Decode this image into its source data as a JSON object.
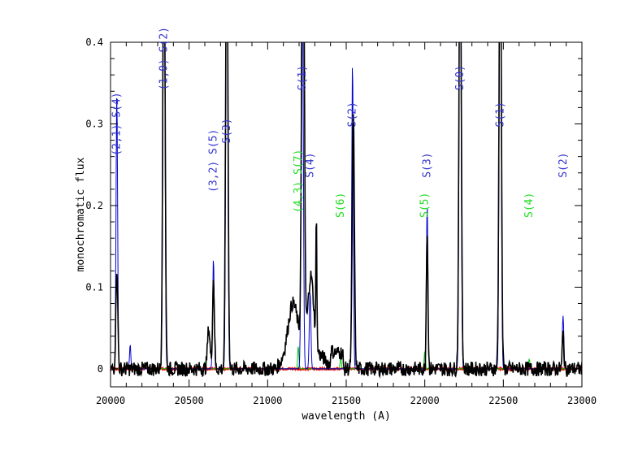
{
  "chart_data": {
    "type": "line",
    "xlabel": "wavelength (A)",
    "ylabel": "monochromatic flux",
    "xlim": [
      20000,
      23000
    ],
    "ylim": [
      -0.022,
      0.4
    ],
    "x_ticks": [
      20000,
      20500,
      21000,
      21500,
      22000,
      22500,
      23000
    ],
    "y_ticks": [
      0,
      0.1,
      0.2,
      0.3,
      0.4
    ],
    "y_tick_labels": [
      "0",
      "0.1",
      "0.2",
      "0.3",
      "0.4"
    ],
    "colors": {
      "observed": "#000000",
      "model_blue": "#0000cc",
      "model_green": "#00cc00",
      "model_red": "#ee0000",
      "label_blue": "#3333cc",
      "label_green": "#22dd22",
      "axis": "#000000"
    },
    "lines": [
      {
        "label": "(2,1) S(4)",
        "color": "blue",
        "x": 20040,
        "y": 0.261
      },
      {
        "label": "(1,0) S(2)",
        "color": "blue",
        "x": 20340,
        "y": 0.341
      },
      {
        "label": "(3,2) S(5)",
        "color": "blue",
        "x": 20655,
        "y": 0.216
      },
      {
        "label": "S(3)",
        "color": "blue",
        "x": 20740,
        "y": 0.276
      },
      {
        "label": "(4,3) S(7)",
        "color": "green",
        "x": 21195,
        "y": 0.191
      },
      {
        "label": "S(1)",
        "color": "blue",
        "x": 21220,
        "y": 0.341
      },
      {
        "label": "S(4)",
        "color": "blue",
        "x": 21270,
        "y": 0.234
      },
      {
        "label": "S(6)",
        "color": "green",
        "x": 21465,
        "y": 0.185
      },
      {
        "label": "S(2)",
        "color": "blue",
        "x": 21540,
        "y": 0.296
      },
      {
        "label": "S(5)",
        "color": "green",
        "x": 22000,
        "y": 0.185
      },
      {
        "label": "S(3)",
        "color": "blue",
        "x": 22015,
        "y": 0.234
      },
      {
        "label": "S(0)",
        "color": "blue",
        "x": 22225,
        "y": 0.341
      },
      {
        "label": "S(1)",
        "color": "blue",
        "x": 22480,
        "y": 0.296
      },
      {
        "label": "S(4)",
        "color": "green",
        "x": 22665,
        "y": 0.185
      },
      {
        "label": "S(2)",
        "color": "blue",
        "x": 22880,
        "y": 0.234
      }
    ],
    "observed_peaks": [
      {
        "x": 20040,
        "y": 0.125,
        "w": 6
      },
      {
        "x": 20340,
        "y": 0.6,
        "w": 7
      },
      {
        "x": 20655,
        "y": 0.11,
        "w": 6
      },
      {
        "x": 20740,
        "y": 0.6,
        "w": 7
      },
      {
        "x": 21225,
        "y": 0.6,
        "w": 8
      },
      {
        "x": 21275,
        "y": 0.09,
        "w": 18
      },
      {
        "x": 21310,
        "y": 0.163,
        "w": 3
      },
      {
        "x": 21545,
        "y": 0.31,
        "w": 7
      },
      {
        "x": 22015,
        "y": 0.172,
        "w": 5
      },
      {
        "x": 22225,
        "y": 0.6,
        "w": 7
      },
      {
        "x": 22480,
        "y": 0.6,
        "w": 7
      },
      {
        "x": 22880,
        "y": 0.043,
        "w": 5
      },
      {
        "x": 21160,
        "y": 0.06,
        "w": 30
      },
      {
        "x": 20625,
        "y": 0.05,
        "w": 8
      }
    ],
    "model_blue_peaks": [
      {
        "x": 20040,
        "y": 0.338,
        "w": 5
      },
      {
        "x": 20125,
        "y": 0.03,
        "w": 4
      },
      {
        "x": 20340,
        "y": 0.6,
        "w": 6
      },
      {
        "x": 20655,
        "y": 0.135,
        "w": 5
      },
      {
        "x": 20740,
        "y": 0.6,
        "w": 6
      },
      {
        "x": 21220,
        "y": 0.6,
        "w": 6
      },
      {
        "x": 21270,
        "y": 0.095,
        "w": 5
      },
      {
        "x": 21540,
        "y": 0.376,
        "w": 5
      },
      {
        "x": 22015,
        "y": 0.2,
        "w": 5
      },
      {
        "x": 22225,
        "y": 0.6,
        "w": 6
      },
      {
        "x": 22480,
        "y": 0.6,
        "w": 6
      },
      {
        "x": 22880,
        "y": 0.065,
        "w": 5
      }
    ],
    "model_green_peaks": [
      {
        "x": 20600,
        "y": 0.008,
        "w": 4
      },
      {
        "x": 20855,
        "y": 0.006,
        "w": 4
      },
      {
        "x": 21195,
        "y": 0.028,
        "w": 4
      },
      {
        "x": 21465,
        "y": 0.014,
        "w": 4
      },
      {
        "x": 22000,
        "y": 0.022,
        "w": 4
      },
      {
        "x": 22665,
        "y": 0.012,
        "w": 4
      }
    ]
  }
}
